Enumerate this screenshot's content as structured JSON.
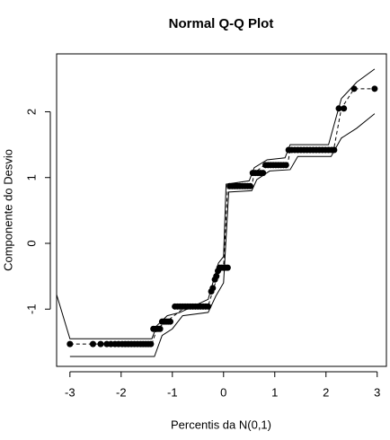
{
  "chart_data": {
    "type": "scatter",
    "title": "Normal Q-Q Plot",
    "xlabel": "Percentis da N(0,1)",
    "ylabel": "Componente do Desvio",
    "xlim": [
      -3.26,
      3.18
    ],
    "ylim": [
      -1.87,
      2.88
    ],
    "xticks": [
      -3,
      -2,
      -1,
      0,
      1,
      2,
      3
    ],
    "yticks": [
      -1,
      0,
      1,
      2
    ],
    "series": [
      {
        "style": "line",
        "color": "#000000",
        "x": [
          -3.26,
          -3,
          -1.4,
          -1.3,
          -1.1,
          -0.85,
          -0.3,
          -0.1,
          0,
          0.05,
          0.5,
          0.6,
          0.85,
          1.2,
          1.3,
          2.05,
          2.3,
          2.6,
          2.95
        ],
        "values": [
          -0.78,
          -1.45,
          -1.45,
          -1.25,
          -1.1,
          -1.05,
          -0.85,
          -0.3,
          -0.2,
          0.9,
          0.95,
          1.15,
          1.27,
          1.3,
          1.5,
          1.5,
          2.2,
          2.45,
          2.65
        ]
      },
      {
        "style": "line",
        "color": "#000000",
        "x": [
          -3,
          -1.35,
          -1.2,
          -1.0,
          -0.8,
          -0.3,
          -0.15,
          0,
          0.1,
          0.55,
          0.65,
          0.9,
          1.3,
          1.45,
          2.1,
          2.3,
          2.6,
          2.95
        ],
        "values": [
          -1.72,
          -1.72,
          -1.4,
          -1.3,
          -1.1,
          -1.05,
          -0.8,
          -0.6,
          0.78,
          0.8,
          0.97,
          1.1,
          1.12,
          1.32,
          1.32,
          1.6,
          1.75,
          1.97
        ]
      },
      {
        "style": "dashed",
        "color": "#000000",
        "x": [
          -3,
          -1.4,
          -1.3,
          -1.1,
          -0.8,
          -0.3,
          -0.1,
          0,
          0.08,
          0.55,
          0.6,
          0.8,
          1.25,
          1.3,
          2.15,
          2.3,
          2.55,
          2.95
        ],
        "values": [
          -1.53,
          -1.53,
          -1.3,
          -1.18,
          -1.0,
          -0.95,
          -0.45,
          -0.37,
          0.87,
          0.87,
          1.07,
          1.19,
          1.19,
          1.42,
          1.42,
          2.05,
          2.35,
          2.35
        ]
      },
      {
        "style": "points",
        "color": "#000000",
        "x": [
          -3,
          -2.55,
          -2.4,
          -2.28,
          -2.2,
          -2.12,
          -2.05,
          -1.98,
          -1.92,
          -1.86,
          -1.8,
          -1.74,
          -1.68,
          -1.62,
          -1.57,
          -1.52,
          -1.47,
          -1.42,
          -1.37,
          -1.32,
          -1.28,
          -1.24,
          -1.2,
          -1.16,
          -1.12,
          -1.08,
          -1.04,
          -0.95,
          -0.9,
          -0.85,
          -0.8,
          -0.75,
          -0.7,
          -0.65,
          -0.6,
          -0.55,
          -0.5,
          -0.45,
          -0.4,
          -0.35,
          -0.3,
          -0.24,
          -0.21,
          -0.17,
          -0.14,
          -0.11,
          -0.08,
          -0.04,
          0,
          0.04,
          0.08,
          0.12,
          0.17,
          0.22,
          0.27,
          0.32,
          0.37,
          0.42,
          0.47,
          0.52,
          0.57,
          0.62,
          0.67,
          0.72,
          0.77,
          0.82,
          0.87,
          0.92,
          0.97,
          1.02,
          1.07,
          1.12,
          1.17,
          1.22,
          1.27,
          1.33,
          1.39,
          1.45,
          1.51,
          1.57,
          1.63,
          1.69,
          1.75,
          1.81,
          1.87,
          1.93,
          1.99,
          2.05,
          2.11,
          2.16,
          2.25,
          2.35,
          2.55,
          2.95
        ],
        "values": [
          -1.53,
          -1.53,
          -1.53,
          -1.53,
          -1.53,
          -1.53,
          -1.53,
          -1.53,
          -1.53,
          -1.53,
          -1.53,
          -1.53,
          -1.53,
          -1.53,
          -1.53,
          -1.53,
          -1.53,
          -1.53,
          -1.3,
          -1.3,
          -1.3,
          -1.3,
          -1.19,
          -1.19,
          -1.19,
          -1.19,
          -1.19,
          -0.96,
          -0.96,
          -0.96,
          -0.96,
          -0.96,
          -0.96,
          -0.96,
          -0.96,
          -0.96,
          -0.96,
          -0.96,
          -0.96,
          -0.96,
          -0.96,
          -0.73,
          -0.68,
          -0.55,
          -0.5,
          -0.42,
          -0.37,
          -0.37,
          -0.37,
          -0.37,
          -0.37,
          0.87,
          0.87,
          0.87,
          0.87,
          0.87,
          0.87,
          0.87,
          0.87,
          0.87,
          1.07,
          1.07,
          1.07,
          1.07,
          1.07,
          1.19,
          1.19,
          1.19,
          1.19,
          1.19,
          1.19,
          1.19,
          1.19,
          1.19,
          1.42,
          1.42,
          1.42,
          1.42,
          1.42,
          1.42,
          1.42,
          1.42,
          1.42,
          1.42,
          1.42,
          1.42,
          1.42,
          1.42,
          1.42,
          1.42,
          2.05,
          2.05,
          2.35,
          2.35
        ]
      }
    ]
  }
}
